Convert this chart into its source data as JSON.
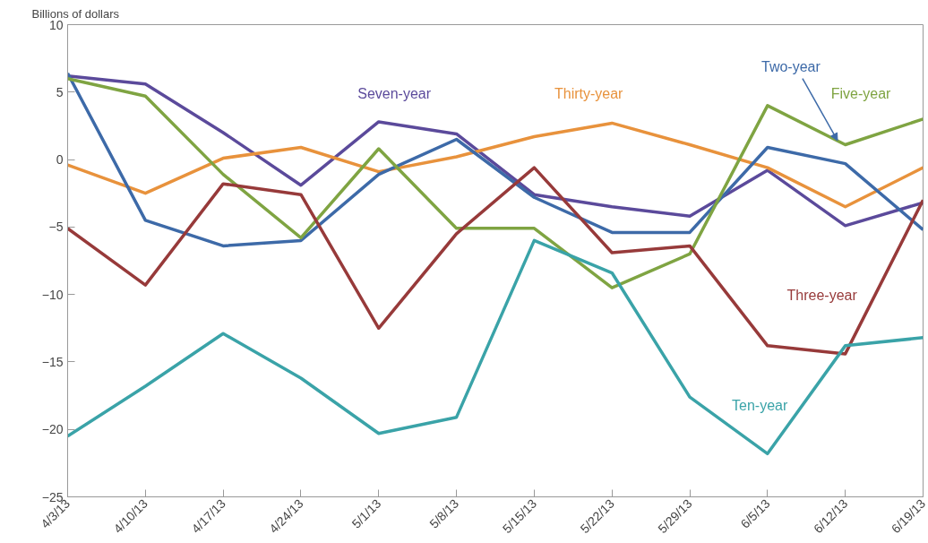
{
  "chart_data": {
    "type": "line",
    "ylabel": "Billions of dollars",
    "categories": [
      "4/3/13",
      "4/10/13",
      "4/17/13",
      "4/24/13",
      "5/1/13",
      "5/8/13",
      "5/15/13",
      "5/22/13",
      "5/29/13",
      "6/5/13",
      "6/12/13",
      "6/19/13"
    ],
    "series": [
      {
        "name": "Seven-year",
        "color": "#5b4a9b",
        "values": [
          6.2,
          5.6,
          2.0,
          -1.9,
          2.8,
          1.9,
          -2.6,
          -3.5,
          -4.2,
          -0.8,
          -4.9,
          -3.2
        ]
      },
      {
        "name": "Thirty-year",
        "color": "#e8923c",
        "values": [
          -0.4,
          -2.5,
          0.1,
          0.9,
          -0.9,
          0.2,
          1.7,
          2.7,
          1.1,
          -0.6,
          -3.5,
          -0.6
        ]
      },
      {
        "name": "Two-year",
        "color": "#3d6aa8",
        "values": [
          6.4,
          -4.5,
          -6.4,
          -6.0,
          -1.1,
          1.5,
          -2.8,
          -5.4,
          -5.4,
          0.9,
          -0.3,
          -5.2
        ]
      },
      {
        "name": "Five-year",
        "color": "#7fa442",
        "values": [
          6.0,
          4.7,
          -1.1,
          -5.8,
          0.8,
          -5.1,
          -5.1,
          -9.5,
          -7.0,
          4.0,
          1.1,
          3.0
        ]
      },
      {
        "name": "Three-year",
        "color": "#973a3a",
        "values": [
          -5.1,
          -9.3,
          -1.8,
          -2.6,
          -12.5,
          -5.5,
          -0.6,
          -6.9,
          -6.4,
          -13.8,
          -14.4,
          -3.0
        ]
      },
      {
        "name": "Ten-year",
        "color": "#3aa3a8",
        "values": [
          -20.5,
          -16.8,
          -12.9,
          -16.2,
          -20.3,
          -19.1,
          -6.0,
          -8.4,
          -17.6,
          -21.8,
          -13.8,
          -13.2
        ]
      }
    ],
    "ylim": [
      -25,
      10
    ],
    "yticks": [
      -25,
      -20,
      -15,
      -10,
      -5,
      0,
      5,
      10
    ],
    "grid": false,
    "legend": false,
    "marker": "none",
    "line_style": "solid"
  }
}
